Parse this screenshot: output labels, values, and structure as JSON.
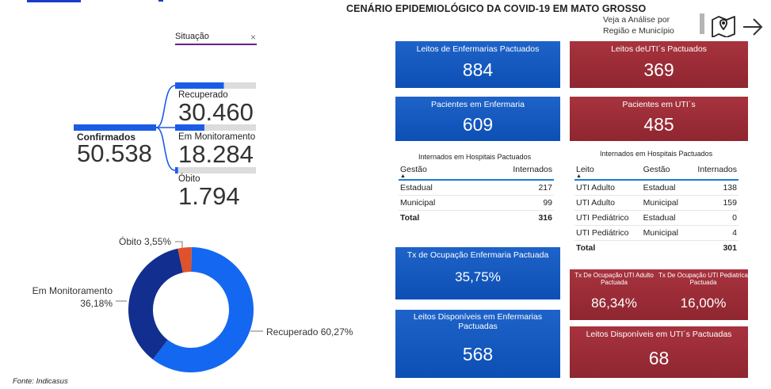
{
  "page": {
    "title": "CENÁRIO EPIDEMIOLÓGICO DA COVID-19 EM MATO GROSSO",
    "nav_hint": "Veja a Análise por Região e Município",
    "map_icon": "map-pin-icon",
    "arrow_icon": "arrow-right-icon",
    "source": "Fonte: Indicasus"
  },
  "tree": {
    "filter_label": "Situação",
    "filter_clear": "×",
    "root": {
      "label": "Confirmados",
      "value": "50.538"
    },
    "nodes": [
      {
        "label": "Recuperado",
        "value": "30.460",
        "share": 0.6027
      },
      {
        "label": "Em Monitoramento",
        "value": "18.284",
        "share": 0.3618
      },
      {
        "label": "Óbito",
        "value": "1.794",
        "share": 0.0355
      }
    ],
    "colors": {
      "bar": "#1a5ce6",
      "track": "#dcdcdc",
      "link": "#1a5ce6"
    }
  },
  "chart_data": {
    "type": "pie",
    "donut": true,
    "categories": [
      "Recuperado",
      "Em Monitoramento",
      "Óbito"
    ],
    "values": [
      60.27,
      36.18,
      3.55
    ],
    "labels": [
      "Recuperado 60,27%",
      "Em Monitoramento\n36,18%",
      "Óbito 3,55%"
    ],
    "colors": [
      "#1467f0",
      "#122f8f",
      "#e0522b"
    ]
  },
  "cards": {
    "leitos_enf": {
      "title": "Leitos de Enfermarias Pactuados",
      "value": "884"
    },
    "leitos_uti": {
      "title": "Leitos deUTI´s Pactuados",
      "value": "369"
    },
    "pac_enf": {
      "title": "Pacientes em Enfermaria",
      "value": "609"
    },
    "pac_uti": {
      "title": "Pacientes em UTI´s",
      "value": "485"
    },
    "tx_enf": {
      "title": "Tx de Ocupação Enfermaria Pactuada",
      "value": "35,75%"
    },
    "tx_uti_adulto": {
      "title": "Tx De Ocupação UTI Adulto Pactuada",
      "value": "86,34%"
    },
    "tx_uti_ped": {
      "title": "Tx De Ocupação UTI Pediatrica Pactuada",
      "value": "16,00%"
    },
    "disp_enf": {
      "title": "Leitos Disponíveis em Enfermarias Pactuadas",
      "value": "568"
    },
    "disp_uti": {
      "title": "Leitos Disponíveis em UTI´s Pactuadas",
      "value": "68"
    }
  },
  "table_enf": {
    "title": "Internados em Hospitais Pactuados",
    "headers": [
      "Gestão",
      "Internados"
    ],
    "rows": [
      [
        "Estadual",
        "217"
      ],
      [
        "Municipal",
        "99"
      ]
    ],
    "total": [
      "Total",
      "316"
    ]
  },
  "table_uti": {
    "title": "Internados em Hospitais Pactuados",
    "headers": [
      "Leito",
      "Gestão",
      "Internados"
    ],
    "rows": [
      [
        "UTI Adulto",
        "Estadual",
        "138"
      ],
      [
        "UTI Adulto",
        "Municipal",
        "159"
      ],
      [
        "UTI Pediátrico",
        "Estadual",
        "0"
      ],
      [
        "UTI Pediátrico",
        "Municipal",
        "4"
      ]
    ],
    "total": [
      "Total",
      "",
      "301"
    ]
  }
}
